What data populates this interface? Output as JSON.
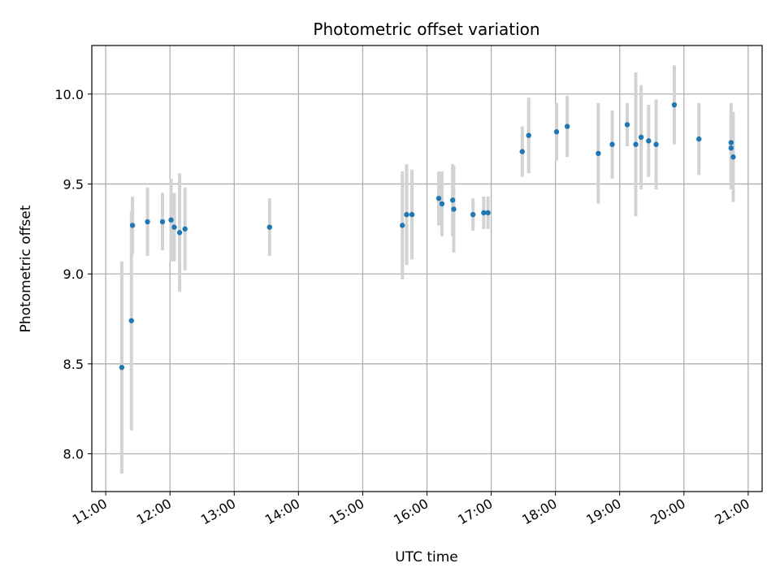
{
  "chart_data": {
    "type": "scatter",
    "title": "Photometric offset variation",
    "xlabel": "UTC time",
    "ylabel": "Photometric offset",
    "x_unit": "UTC hour of day",
    "xlim": [
      "10:47",
      "21:13"
    ],
    "ylim": [
      7.79,
      10.27
    ],
    "x_ticks": [
      "11:00",
      "12:00",
      "13:00",
      "14:00",
      "15:00",
      "16:00",
      "17:00",
      "18:00",
      "19:00",
      "20:00",
      "21:00"
    ],
    "y_ticks": [
      "8.0",
      "8.5",
      "9.0",
      "9.5",
      "10.0"
    ],
    "grid": true,
    "marker_color": "#1f77b4",
    "errorbar_color": "#d3d3d3",
    "points": [
      {
        "time": "11:15",
        "y": 8.48,
        "err": 0.59
      },
      {
        "time": "11:24",
        "y": 8.74,
        "err": 0.61
      },
      {
        "time": "11:25",
        "y": 9.27,
        "err": 0.16
      },
      {
        "time": "11:39",
        "y": 9.29,
        "err": 0.19
      },
      {
        "time": "11:53",
        "y": 9.29,
        "err": 0.16
      },
      {
        "time": "12:01",
        "y": 9.3,
        "err": 0.23
      },
      {
        "time": "12:04",
        "y": 9.26,
        "err": 0.19
      },
      {
        "time": "12:09",
        "y": 9.23,
        "err": 0.33
      },
      {
        "time": "12:14",
        "y": 9.25,
        "err": 0.23
      },
      {
        "time": "13:33",
        "y": 9.26,
        "err": 0.16
      },
      {
        "time": "15:37",
        "y": 9.27,
        "err": 0.3
      },
      {
        "time": "15:41",
        "y": 9.33,
        "err": 0.28
      },
      {
        "time": "15:46",
        "y": 9.33,
        "err": 0.25
      },
      {
        "time": "16:11",
        "y": 9.42,
        "err": 0.15
      },
      {
        "time": "16:14",
        "y": 9.39,
        "err": 0.18
      },
      {
        "time": "16:24",
        "y": 9.41,
        "err": 0.2
      },
      {
        "time": "16:25",
        "y": 9.36,
        "err": 0.24
      },
      {
        "time": "16:43",
        "y": 9.33,
        "err": 0.09
      },
      {
        "time": "16:53",
        "y": 9.34,
        "err": 0.09
      },
      {
        "time": "16:57",
        "y": 9.34,
        "err": 0.09
      },
      {
        "time": "17:29",
        "y": 9.68,
        "err": 0.14
      },
      {
        "time": "17:35",
        "y": 9.77,
        "err": 0.21
      },
      {
        "time": "18:01",
        "y": 9.79,
        "err": 0.16
      },
      {
        "time": "18:11",
        "y": 9.82,
        "err": 0.17
      },
      {
        "time": "18:40",
        "y": 9.67,
        "err": 0.28
      },
      {
        "time": "18:53",
        "y": 9.72,
        "err": 0.19
      },
      {
        "time": "19:07",
        "y": 9.83,
        "err": 0.12
      },
      {
        "time": "19:15",
        "y": 9.72,
        "err": 0.4
      },
      {
        "time": "19:20",
        "y": 9.76,
        "err": 0.29
      },
      {
        "time": "19:27",
        "y": 9.74,
        "err": 0.2
      },
      {
        "time": "19:34",
        "y": 9.72,
        "err": 0.25
      },
      {
        "time": "19:51",
        "y": 9.94,
        "err": 0.22
      },
      {
        "time": "20:14",
        "y": 9.75,
        "err": 0.2
      },
      {
        "time": "20:44",
        "y": 9.73,
        "err": 0.22
      },
      {
        "time": "20:44",
        "y": 9.7,
        "err": 0.23
      },
      {
        "time": "20:46",
        "y": 9.65,
        "err": 0.25
      }
    ]
  }
}
